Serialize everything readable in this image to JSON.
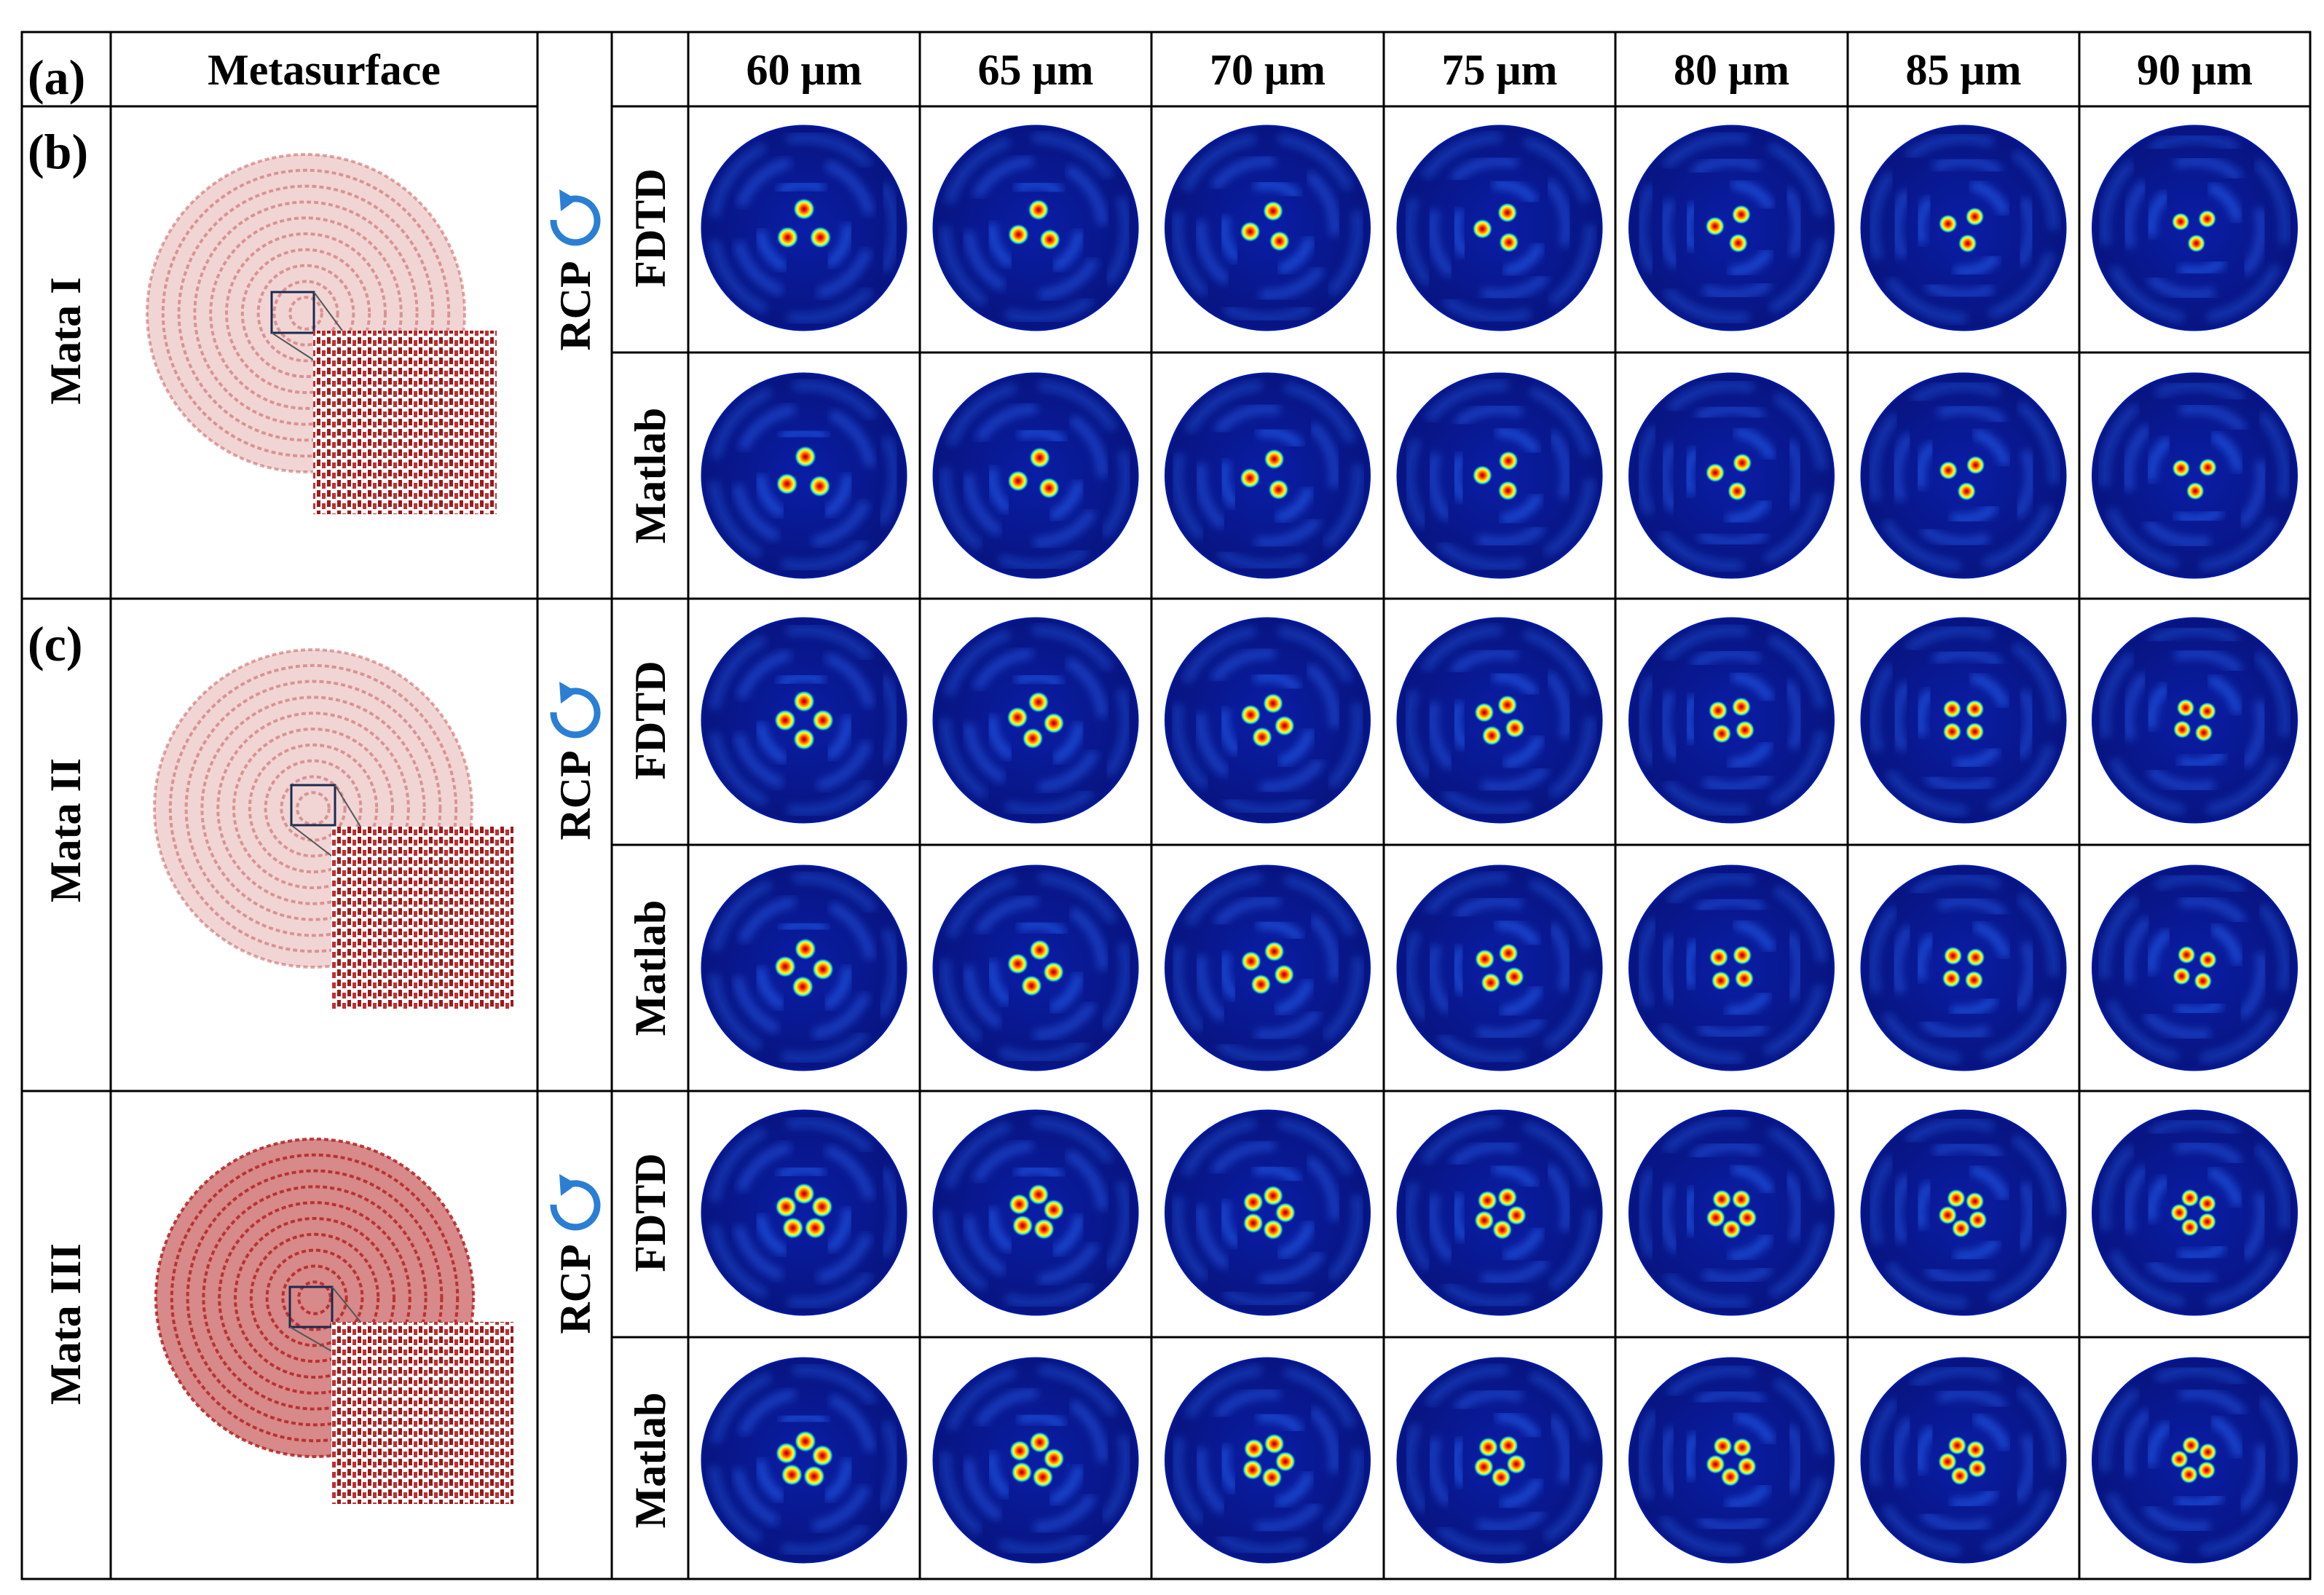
{
  "header": {
    "metasurface_label": "Metasurface",
    "distances": [
      "60 μm",
      "65 μm",
      "70 μm",
      "75 μm",
      "80 μm",
      "85 μm",
      "90 μm"
    ]
  },
  "panels": [
    {
      "label": "(a)",
      "name": "Mata I",
      "polarization": "RCP",
      "lobes": 3,
      "methods": [
        "FDTD",
        "Matlab"
      ],
      "metasurface_color": "#c04040"
    },
    {
      "label": "(b)",
      "name": "Mata II",
      "polarization": "RCP",
      "lobes": 4,
      "methods": [
        "FDTD",
        "Matlab"
      ],
      "metasurface_color": "#c04040"
    },
    {
      "label": "(c)",
      "name": "Mata III",
      "polarization": "RCP",
      "lobes": 5,
      "methods": [
        "FDTD",
        "Matlab"
      ],
      "metasurface_color": "#b82828"
    }
  ],
  "colors": {
    "field_background": "#0a1d9a",
    "field_rim": "#00169e",
    "hotspot": "#e60000",
    "rotation_icon": "#2a7fd4",
    "grid_line": "#000000"
  },
  "icons": {
    "polarization": "circular-arrow-icon"
  }
}
